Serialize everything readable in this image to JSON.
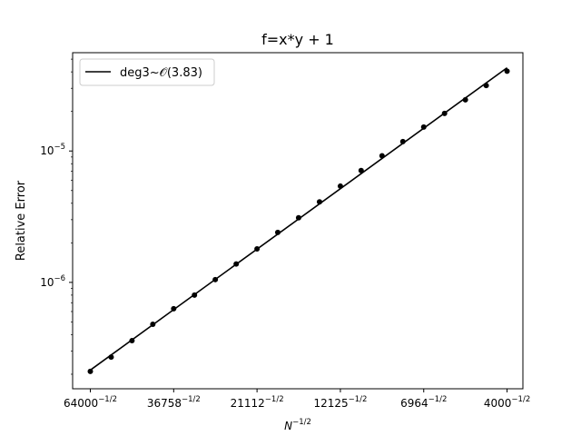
{
  "chart_data": {
    "type": "scatter",
    "title": "f=x*y + 1",
    "xlabel": "N^{-1/2}",
    "ylabel": "Relative Error",
    "xscale": "log",
    "yscale": "log",
    "grid": false,
    "legend_position": "upper-left",
    "xlim_N": [
      72000,
      3600
    ],
    "ylim": [
      1.55e-07,
      5.6e-05
    ],
    "xticks": [
      {
        "N": 64000,
        "label": "64000"
      },
      {
        "N": 36758,
        "label": "36758"
      },
      {
        "N": 21112,
        "label": "21112"
      },
      {
        "N": 12125,
        "label": "12125"
      },
      {
        "N": 6964,
        "label": "6964"
      },
      {
        "N": 4000,
        "label": "4000"
      }
    ],
    "xtick_exponent": "−1/2",
    "yticks": [
      {
        "value": 1e-06,
        "mantissa": "10",
        "exponent": "−6"
      },
      {
        "value": 1e-05,
        "mantissa": "10",
        "exponent": "−5"
      }
    ],
    "series": [
      {
        "name": "deg3~𝒪(3.83)",
        "kind": "fit-line",
        "color": "#000000",
        "x_N": [
          64000,
          4000
        ],
        "y": [
          2.15e-07,
          4.3e-05
        ]
      },
      {
        "kind": "points",
        "color": "#000000",
        "x_N": [
          64000,
          55720,
          48510,
          42230,
          36758,
          32010,
          27870,
          24250,
          21112,
          18390,
          16010,
          13930,
          12125,
          10560,
          9190,
          8000,
          6964,
          6063,
          5278,
          4595,
          4000
        ],
        "y": [
          2.1e-07,
          2.7e-07,
          3.6e-07,
          4.8e-07,
          6.3e-07,
          8e-07,
          1.05e-06,
          1.38e-06,
          1.8e-06,
          2.4e-06,
          3.1e-06,
          4.1e-06,
          5.4e-06,
          7.1e-06,
          9.2e-06,
          1.18e-05,
          1.52e-05,
          1.93e-05,
          2.45e-05,
          3.15e-05,
          4.05e-05
        ]
      }
    ]
  }
}
